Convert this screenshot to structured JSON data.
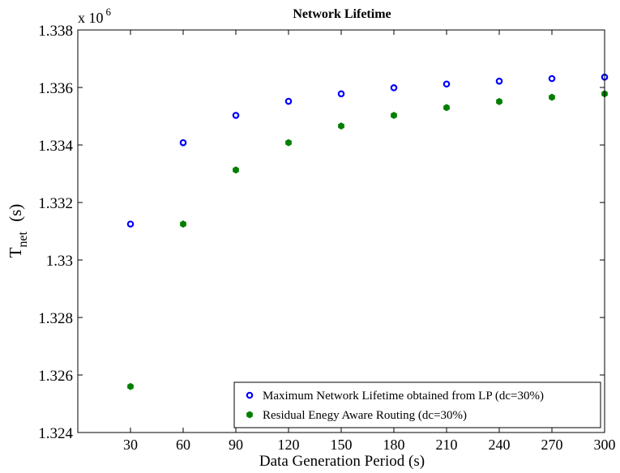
{
  "chart_data": {
    "type": "scatter",
    "title": "Network Lifetime",
    "xlabel": "Data Generation Period (s)",
    "ylabel_main": "T",
    "ylabel_sub": "net",
    "ylabel_unit": "(s)",
    "y_exponent_prefix": "x 10",
    "y_exponent_power": "6",
    "xlim": [
      0,
      300
    ],
    "ylim": [
      1324000,
      1338000
    ],
    "x_ticks": [
      30,
      60,
      90,
      120,
      150,
      180,
      210,
      240,
      270,
      300
    ],
    "x_tick_labels": [
      "30",
      "60",
      "90",
      "120",
      "150",
      "180",
      "210",
      "240",
      "270",
      "300"
    ],
    "y_ticks": [
      1324000,
      1326000,
      1328000,
      1330000,
      1332000,
      1334000,
      1336000,
      1338000
    ],
    "y_tick_labels": [
      "1.324",
      "1.326",
      "1.328",
      "1.33",
      "1.332",
      "1.334",
      "1.336",
      "1.338"
    ],
    "grid": false,
    "legend_position": "bottom-right",
    "series": [
      {
        "name": "Maximum Network Lifetime obtained from LP (dc=30%)",
        "marker": "open-circle",
        "color": "#0000ff",
        "x": [
          30,
          60,
          90,
          120,
          150,
          180,
          210,
          240,
          270,
          300
        ],
        "y": [
          1331250,
          1334080,
          1335030,
          1335520,
          1335780,
          1335990,
          1336120,
          1336220,
          1336310,
          1336360
        ]
      },
      {
        "name": "Residual Enegy Aware Routing (dc=30%)",
        "marker": "filled-hexagon",
        "color": "#007f00",
        "x": [
          30,
          60,
          90,
          120,
          150,
          180,
          210,
          240,
          270,
          300
        ],
        "y": [
          1325600,
          1331250,
          1333130,
          1334080,
          1334660,
          1335030,
          1335300,
          1335510,
          1335660,
          1335780
        ]
      }
    ]
  }
}
